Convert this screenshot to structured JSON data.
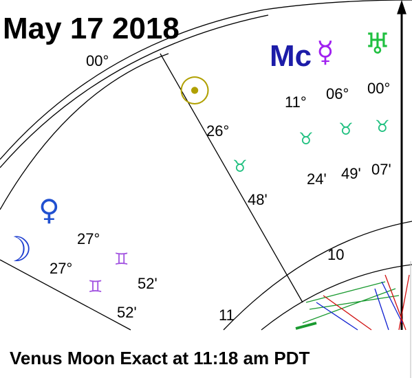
{
  "header": {
    "date": "May 17 2018"
  },
  "cusp_label": "00°",
  "points": [
    {
      "glyph": "Mc",
      "degree": "11°",
      "sign": "♉",
      "minute": "24'"
    },
    {
      "glyph": "☿",
      "degree": "06°",
      "sign": "♉",
      "minute": "49'"
    },
    {
      "glyph": "♅",
      "degree": "00°",
      "sign": "♉",
      "minute": "07'"
    },
    {
      "glyph": "☉",
      "degree": "26°",
      "sign": "♉",
      "minute": "48'"
    },
    {
      "glyph": "♀",
      "degree": "27°",
      "sign": "♊",
      "minute": "52'"
    },
    {
      "glyph": "☽",
      "degree": "27°",
      "sign": "♊",
      "minute": "52'"
    }
  ],
  "houses": [
    "10",
    "11"
  ],
  "caption": "Venus Moon Exact at 11:18 am PDT"
}
